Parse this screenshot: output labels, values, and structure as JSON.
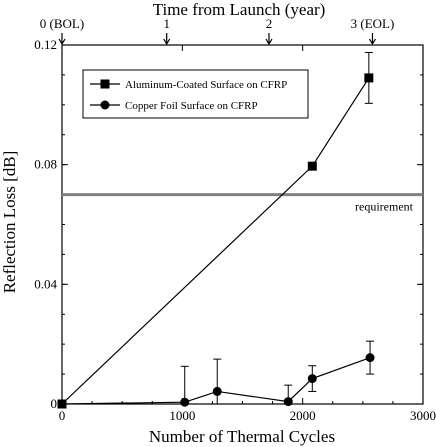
{
  "chart_data": {
    "type": "line",
    "title": "",
    "xlabel": "Number of Thermal Cycles",
    "ylabel": "Reflection Loss [dB]",
    "top_axis": {
      "label": "Time from Launch (year)",
      "ticks": [
        {
          "cycles": 0,
          "label": "0 (BOL)"
        },
        {
          "cycles": 870,
          "label": "1"
        },
        {
          "cycles": 1720,
          "label": "2"
        },
        {
          "cycles": 2580,
          "label": "3 (EOL)"
        }
      ]
    },
    "xlim": [
      0,
      3000
    ],
    "ylim": [
      0,
      0.12
    ],
    "xticks": [
      0,
      1000,
      2000,
      3000
    ],
    "xtick_labels": [
      "0",
      "1000",
      "2000",
      "3000"
    ],
    "yticks": [
      0,
      0.04,
      0.08,
      0.12
    ],
    "ytick_labels": [
      "0",
      "0.04",
      "0.08",
      "0.12"
    ],
    "legend_position": "top-left",
    "series": [
      {
        "name": "Aluminum-Coated Surface on CFRP",
        "marker": "square",
        "color": "#000000",
        "x": [
          0,
          2080,
          2550
        ],
        "y": [
          0,
          0.0795,
          0.109
        ],
        "err": [
          0,
          0.0012,
          0.0085
        ]
      },
      {
        "name": "Copper Foil Surface on CFRP",
        "marker": "circle",
        "color": "#000000",
        "x": [
          0,
          1020,
          1290,
          1880,
          2080,
          2560
        ],
        "y": [
          0,
          0.0006,
          0.0042,
          0.0008,
          0.0085,
          0.0155
        ],
        "err": [
          0,
          0.012,
          0.0108,
          0.0055,
          0.0043,
          0.0055
        ]
      }
    ],
    "reference_lines": [
      {
        "y": 0.07,
        "label": "requirement",
        "color": "#808080"
      }
    ]
  }
}
